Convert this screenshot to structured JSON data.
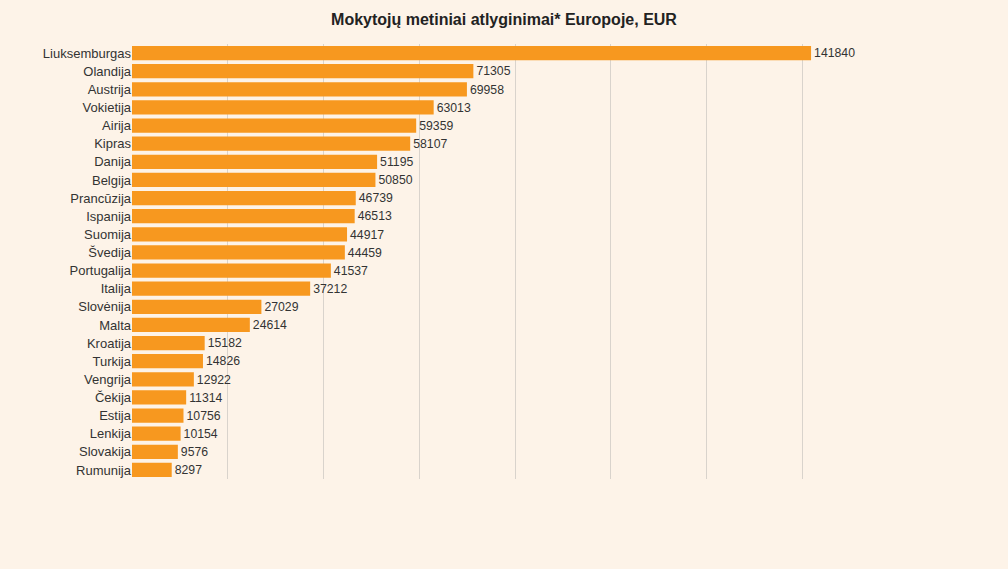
{
  "chart_data": {
    "type": "bar",
    "orientation": "horizontal",
    "title": "Mokytojų metiniai atlyginimai* Europoje, EUR",
    "categories": [
      "Liuksemburgas",
      "Olandija",
      "Austrija",
      "Vokietija",
      "Airija",
      "Kipras",
      "Danija",
      "Belgija",
      "Prancūzija",
      "Ispanija",
      "Suomija",
      "Švedija",
      "Portugalija",
      "Italija",
      "Slovėnija",
      "Malta",
      "Kroatija",
      "Turkija",
      "Vengrija",
      "Čekija",
      "Estija",
      "Lenkija",
      "Slovakija",
      "Rumunija"
    ],
    "values": [
      141840,
      71305,
      69958,
      63013,
      59359,
      58107,
      51195,
      50850,
      46739,
      46513,
      44917,
      44459,
      41537,
      37212,
      27029,
      24614,
      15182,
      14826,
      12922,
      11314,
      10756,
      10154,
      9576,
      8297
    ],
    "color": "#f7981f",
    "xlim": [
      0,
      160000
    ],
    "xticks": [
      0,
      20000,
      40000,
      60000,
      80000,
      100000,
      120000,
      140000,
      160000
    ],
    "grid": true,
    "data_labels": true,
    "tick_labels": "y"
  }
}
